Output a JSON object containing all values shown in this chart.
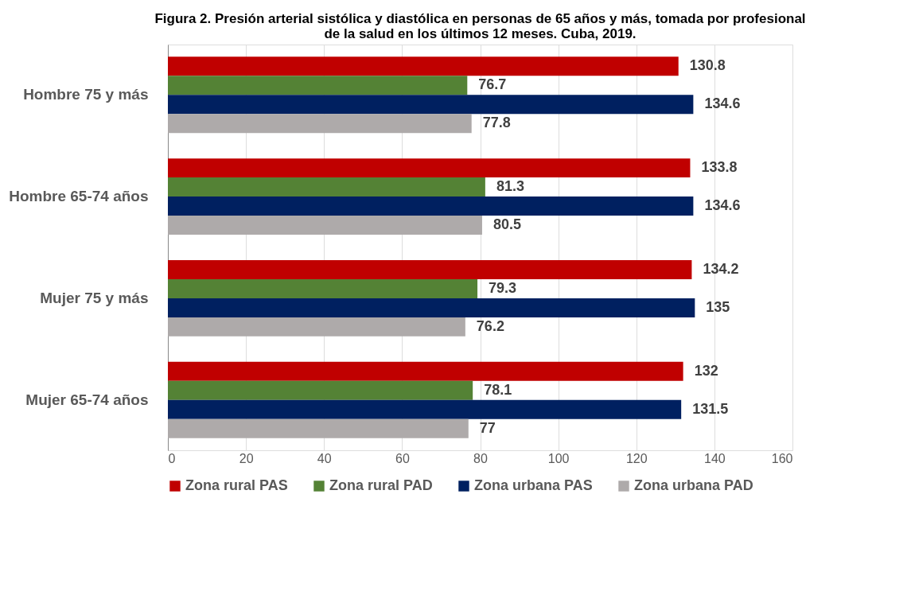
{
  "chart_data": {
    "type": "bar",
    "orientation": "horizontal",
    "title": "Figura 2. Presión arterial sistólica y diastólica en personas de 65 años y más, tomada por profesional de la salud en los últimos 12 meses. Cuba, 2019.",
    "categories": [
      "Hombre 75 y más",
      "Hombre 65-74 años",
      "Mujer 75 y más",
      "Mujer 65-74 años"
    ],
    "series": [
      {
        "name": "Zona rural PAS",
        "color": "#c00000",
        "values": [
          130.8,
          133.8,
          134.2,
          132
        ]
      },
      {
        "name": "Zona rural PAD",
        "color": "#548235",
        "values": [
          76.7,
          81.3,
          79.3,
          78.1
        ]
      },
      {
        "name": "Zona urbana PAS",
        "color": "#002060",
        "values": [
          134.6,
          134.6,
          135,
          131.5
        ]
      },
      {
        "name": "Zona urbana PAD",
        "color": "#aeaaaa",
        "values": [
          77.8,
          80.5,
          76.2,
          77
        ]
      }
    ],
    "xlim": [
      0,
      160
    ],
    "xticks": [
      0,
      20,
      40,
      60,
      80,
      100,
      120,
      140,
      160
    ],
    "grid": "x",
    "legend": "bottom",
    "data_labels": true
  }
}
